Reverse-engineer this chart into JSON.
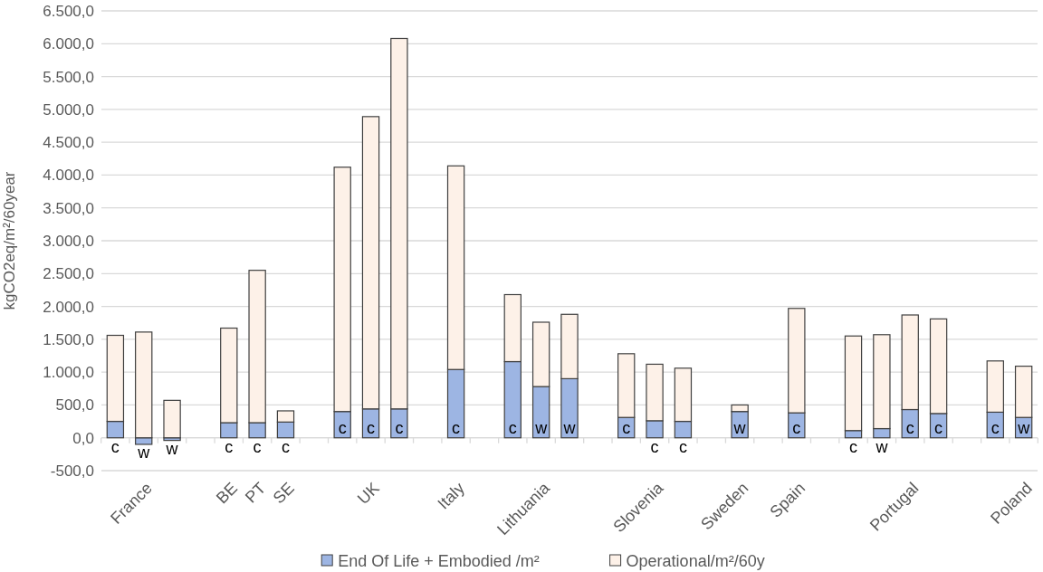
{
  "chart_data": {
    "type": "bar",
    "stacked": true,
    "ylabel": "kgCO2eq/m²/60year",
    "categories": [
      null,
      "France",
      null,
      null,
      "BE",
      "PT",
      "SE",
      null,
      null,
      "UK",
      null,
      null,
      "Italy",
      null,
      null,
      "Lithuania",
      null,
      null,
      null,
      "Slovenia",
      null,
      null,
      "Sweden",
      null,
      "Spain",
      null,
      null,
      null,
      "Portugal",
      null,
      null,
      null,
      "Poland"
    ],
    "series": [
      {
        "name": "End Of Life + Embodied /m²",
        "color": "#9db5e3",
        "values": [
          250,
          -100,
          -40,
          null,
          230,
          230,
          240,
          null,
          400,
          440,
          440,
          null,
          1040,
          null,
          1160,
          780,
          900,
          null,
          310,
          260,
          250,
          null,
          400,
          null,
          380,
          null,
          110,
          140,
          430,
          370,
          null,
          390,
          310
        ],
        "value_labels": [
          "c",
          "w",
          "w",
          null,
          "c",
          "c",
          "c",
          null,
          "c",
          "c",
          "c",
          null,
          "c",
          null,
          "c",
          "w",
          "w",
          null,
          "c",
          "c",
          "c",
          null,
          "w",
          null,
          "c",
          null,
          "c",
          "w",
          "c",
          "c",
          null,
          "c",
          "w"
        ]
      },
      {
        "name": "Operational/m²/60y",
        "color": "#fdf1e8",
        "values": [
          1310,
          1610,
          570,
          null,
          1440,
          2320,
          170,
          null,
          3720,
          4450,
          5640,
          null,
          3100,
          null,
          1020,
          980,
          980,
          null,
          970,
          860,
          810,
          null,
          100,
          null,
          1590,
          null,
          1440,
          1430,
          1440,
          1440,
          null,
          780,
          780
        ]
      }
    ],
    "ylim": [
      -500,
      6500
    ],
    "yticks": [
      {
        "value": -500,
        "label": "-500,0"
      },
      {
        "value": 0,
        "label": "0,0"
      },
      {
        "value": 500,
        "label": "500,0"
      },
      {
        "value": 1000,
        "label": "1.000,0"
      },
      {
        "value": 1500,
        "label": "1.500,0"
      },
      {
        "value": 2000,
        "label": "2.000,0"
      },
      {
        "value": 2500,
        "label": "2.500,0"
      },
      {
        "value": 3000,
        "label": "3.000,0"
      },
      {
        "value": 3500,
        "label": "3.500,0"
      },
      {
        "value": 4000,
        "label": "4.000,0"
      },
      {
        "value": 4500,
        "label": "4.500,0"
      },
      {
        "value": 5000,
        "label": "5.000,0"
      },
      {
        "value": 5500,
        "label": "5.500,0"
      },
      {
        "value": 6000,
        "label": "6.000,0"
      },
      {
        "value": 6500,
        "label": "6.500,0"
      }
    ],
    "grid": "y",
    "legend": "bottom"
  }
}
